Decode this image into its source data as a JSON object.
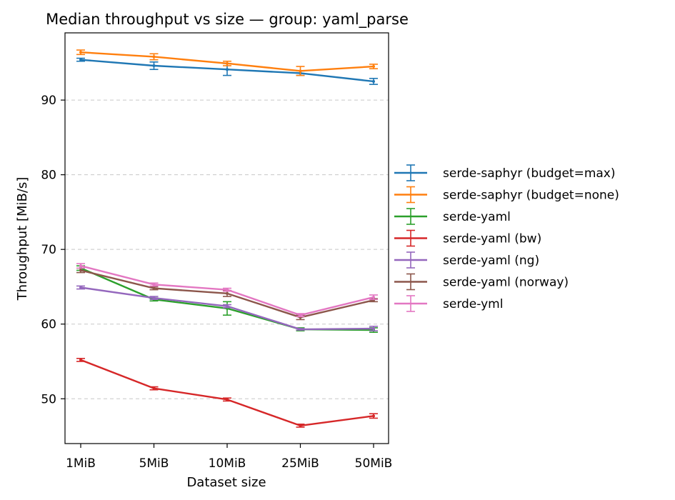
{
  "chart_data": {
    "type": "line",
    "title": "Median throughput vs size — group: yaml_parse",
    "xlabel": "Dataset size",
    "ylabel": "Throughput [MiB/s]",
    "categories": [
      "1MiB",
      "5MiB",
      "10MiB",
      "25MiB",
      "50MiB"
    ],
    "ylim": [
      44,
      99
    ],
    "yticks": [
      50,
      60,
      70,
      80,
      90
    ],
    "grid": "y-dashed",
    "legend_position": "right-outside",
    "series": [
      {
        "name": "serde-saphyr (budget=max)",
        "color": "#1f77b4",
        "values": [
          95.4,
          94.6,
          94.1,
          93.6,
          92.5
        ],
        "err": [
          0.2,
          0.5,
          0.8,
          0.3,
          0.4
        ]
      },
      {
        "name": "serde-saphyr (budget=none)",
        "color": "#ff7f0e",
        "values": [
          96.4,
          95.8,
          94.9,
          93.9,
          94.5
        ],
        "err": [
          0.3,
          0.4,
          0.3,
          0.6,
          0.3
        ]
      },
      {
        "name": "serde-yaml",
        "color": "#2ca02c",
        "values": [
          67.5,
          63.3,
          62.1,
          59.3,
          59.2
        ],
        "err": [
          0.3,
          0.2,
          0.9,
          0.2,
          0.3
        ]
      },
      {
        "name": "serde-yaml (bw)",
        "color": "#d62728",
        "values": [
          55.2,
          51.4,
          49.9,
          46.4,
          47.7
        ],
        "err": [
          0.2,
          0.2,
          0.2,
          0.2,
          0.3
        ]
      },
      {
        "name": "serde-yaml (ng)",
        "color": "#9467bd",
        "values": [
          64.9,
          63.5,
          62.4,
          59.3,
          59.4
        ],
        "err": [
          0.2,
          0.2,
          0.2,
          0.1,
          0.3
        ]
      },
      {
        "name": "serde-yaml (norway)",
        "color": "#8c564b",
        "values": [
          67.2,
          64.8,
          64.1,
          60.9,
          63.2
        ],
        "err": [
          0.3,
          0.2,
          0.4,
          0.3,
          0.2
        ]
      },
      {
        "name": "serde-yml",
        "color": "#e377c2",
        "values": [
          67.8,
          65.3,
          64.6,
          61.2,
          63.6
        ],
        "err": [
          0.3,
          0.2,
          0.2,
          0.2,
          0.3
        ]
      }
    ]
  }
}
